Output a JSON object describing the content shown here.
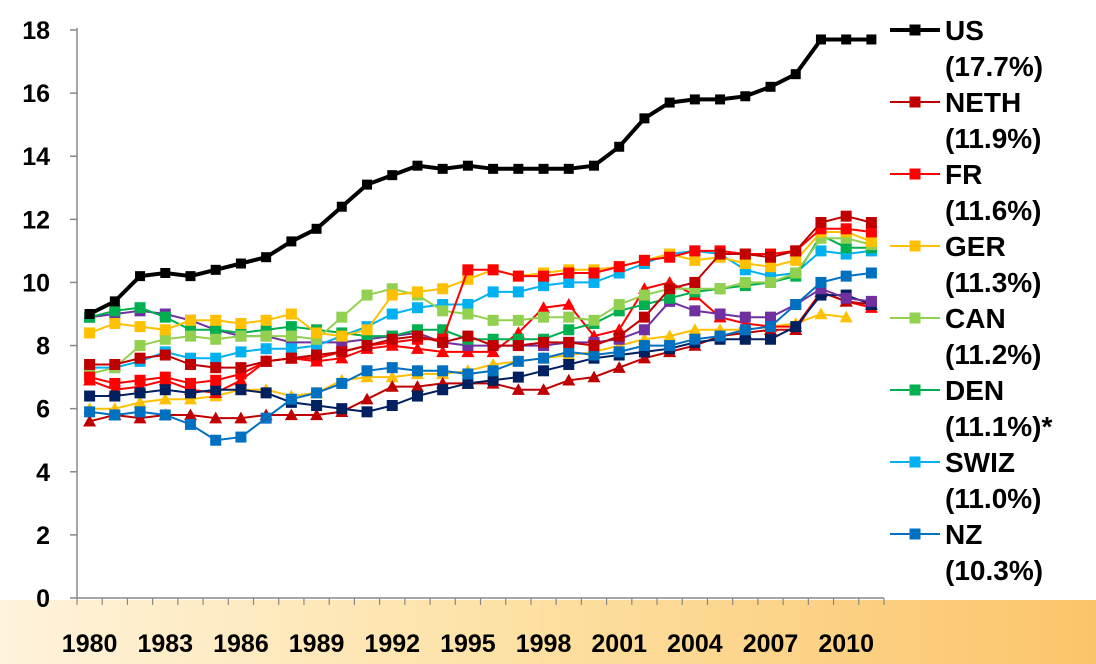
{
  "chart_data": {
    "type": "line",
    "title": "",
    "xlabel": "",
    "ylabel": "",
    "ylim": [
      0,
      18
    ],
    "yticks": [
      0,
      2,
      4,
      6,
      8,
      10,
      12,
      14,
      16,
      18
    ],
    "x": [
      1980,
      1981,
      1982,
      1983,
      1984,
      1985,
      1986,
      1987,
      1988,
      1989,
      1990,
      1991,
      1992,
      1993,
      1994,
      1995,
      1996,
      1997,
      1998,
      1999,
      2000,
      2001,
      2002,
      2003,
      2004,
      2005,
      2006,
      2007,
      2008,
      2009,
      2010,
      2011
    ],
    "xtick_labels": [
      "1980",
      "1983",
      "1986",
      "1989",
      "1992",
      "1995",
      "1998",
      "2001",
      "2004",
      "2007",
      "2010"
    ],
    "legend_position": "right",
    "series": [
      {
        "name": "US",
        "note": "(17.7%)",
        "color": "#000000",
        "marker": "square",
        "values": [
          9.0,
          9.4,
          10.2,
          10.3,
          10.2,
          10.4,
          10.6,
          10.8,
          11.3,
          11.7,
          12.4,
          13.1,
          13.4,
          13.7,
          13.6,
          13.7,
          13.6,
          13.6,
          13.6,
          13.6,
          13.7,
          14.3,
          15.2,
          15.7,
          15.8,
          15.8,
          15.9,
          16.2,
          16.6,
          17.7,
          17.7,
          17.7
        ]
      },
      {
        "name": "NETH",
        "note": "(11.9%)",
        "color": "#c00000",
        "marker": "square",
        "values": [
          7.4,
          7.4,
          7.6,
          7.7,
          7.4,
          7.3,
          7.3,
          7.5,
          7.6,
          7.7,
          7.8,
          8.0,
          8.2,
          8.3,
          8.1,
          8.3,
          8.0,
          8.0,
          8.1,
          8.1,
          8.0,
          8.3,
          8.9,
          9.8,
          10.0,
          10.9,
          10.9,
          10.8,
          11.0,
          11.9,
          12.1,
          11.9
        ]
      },
      {
        "name": "FR",
        "note": "(11.6%)",
        "color": "#ff0000",
        "marker": "square",
        "values": [
          7.0,
          6.8,
          6.9,
          7.0,
          6.8,
          6.9,
          7.1,
          7.5,
          7.6,
          7.6,
          7.8,
          8.0,
          8.1,
          8.2,
          8.2,
          10.4,
          10.4,
          10.2,
          10.2,
          10.3,
          10.3,
          10.5,
          10.7,
          10.8,
          11.0,
          11.0,
          10.9,
          10.9,
          11.0,
          11.7,
          11.7,
          11.6
        ]
      },
      {
        "name": "GER",
        "note": "(11.3%)",
        "color": "#ffc000",
        "marker": "square",
        "values": [
          8.4,
          8.7,
          8.6,
          8.5,
          8.8,
          8.8,
          8.7,
          8.8,
          9.0,
          8.4,
          8.3,
          8.5,
          9.6,
          9.7,
          9.8,
          10.1,
          10.4,
          10.2,
          10.3,
          10.4,
          10.4,
          10.5,
          10.7,
          10.9,
          10.7,
          10.8,
          10.6,
          10.5,
          10.7,
          11.6,
          11.6,
          11.3
        ]
      },
      {
        "name": "CAN",
        "note": "(11.2%)",
        "color": "#92d050",
        "marker": "square",
        "values": [
          7.1,
          7.3,
          8.0,
          8.2,
          8.3,
          8.2,
          8.3,
          8.3,
          8.3,
          8.2,
          8.9,
          9.6,
          9.8,
          9.6,
          9.1,
          9.0,
          8.8,
          8.8,
          8.9,
          8.9,
          8.8,
          9.3,
          9.6,
          9.8,
          9.8,
          9.8,
          10.0,
          10.0,
          10.3,
          11.4,
          11.4,
          11.2
        ]
      },
      {
        "name": "DEN",
        "note": "(11.1%)*",
        "color": "#00b050",
        "marker": "square",
        "values": [
          8.9,
          9.1,
          9.2,
          8.9,
          8.5,
          8.5,
          8.4,
          8.5,
          8.6,
          8.5,
          8.4,
          8.3,
          8.3,
          8.5,
          8.5,
          8.2,
          8.2,
          8.2,
          8.2,
          8.5,
          8.7,
          9.1,
          9.3,
          9.5,
          9.7,
          9.8,
          9.9,
          10.0,
          10.2,
          11.5,
          11.1,
          11.1
        ]
      },
      {
        "name": "SWIZ",
        "note": "(11.0%)",
        "color": "#00b0f0",
        "marker": "square",
        "values": [
          7.3,
          7.3,
          7.5,
          7.8,
          7.6,
          7.6,
          7.8,
          7.9,
          7.9,
          8.0,
          8.3,
          8.6,
          9.0,
          9.2,
          9.3,
          9.3,
          9.7,
          9.7,
          9.9,
          10.0,
          10.0,
          10.3,
          10.6,
          10.9,
          11.0,
          10.9,
          10.4,
          10.2,
          10.3,
          11.0,
          10.9,
          11.0
        ]
      },
      {
        "name": "NZ",
        "note": "(10.3%)",
        "color": "#0070c0",
        "marker": "square",
        "values": [
          5.9,
          5.8,
          5.9,
          5.8,
          5.5,
          5.0,
          5.1,
          5.7,
          6.3,
          6.5,
          6.8,
          7.2,
          7.3,
          7.2,
          7.2,
          7.1,
          7.2,
          7.5,
          7.6,
          7.8,
          7.7,
          7.8,
          8.0,
          8.0,
          8.2,
          8.3,
          8.5,
          8.6,
          9.3,
          10.0,
          10.2,
          10.3
        ]
      },
      {
        "name": "",
        "note": "",
        "color": "#7030a0",
        "marker": "square",
        "values": [
          8.9,
          9.0,
          9.1,
          9.0,
          8.8,
          8.5,
          8.3,
          8.3,
          8.1,
          8.1,
          8.1,
          8.2,
          8.3,
          8.4,
          8.1,
          8.0,
          8.0,
          8.0,
          8.0,
          8.1,
          8.1,
          8.2,
          8.5,
          9.4,
          9.1,
          9.0,
          8.9,
          8.9,
          9.3,
          9.8,
          9.5,
          9.4
        ]
      },
      {
        "name": "",
        "note": "",
        "color": "#002060",
        "marker": "square",
        "values": [
          6.4,
          6.4,
          6.5,
          6.6,
          6.5,
          6.6,
          6.6,
          6.5,
          6.2,
          6.1,
          6.0,
          5.9,
          6.1,
          6.4,
          6.6,
          6.8,
          6.9,
          7.0,
          7.2,
          7.4,
          7.6,
          7.7,
          7.8,
          7.9,
          8.1,
          8.2,
          8.2,
          8.2,
          8.6,
          9.6,
          9.6,
          9.3
        ]
      },
      {
        "name": "",
        "note": "",
        "color": "#c00000",
        "marker": "triangle",
        "values": [
          5.6,
          5.8,
          5.7,
          5.8,
          5.8,
          5.7,
          5.7,
          5.8,
          5.8,
          5.8,
          5.9,
          6.3,
          6.7,
          6.7,
          6.8,
          6.8,
          6.8,
          6.6,
          6.6,
          6.9,
          7.0,
          7.3,
          7.6,
          7.8,
          8.0,
          8.3,
          8.4,
          8.5,
          8.5,
          9.7,
          9.4,
          9.3
        ]
      },
      {
        "name": "",
        "note": "",
        "color": "#ff0000",
        "marker": "triangle",
        "values": [
          6.9,
          6.6,
          6.7,
          6.9,
          6.6,
          6.5,
          6.9,
          7.5,
          7.6,
          7.5,
          7.6,
          7.9,
          8.0,
          7.9,
          7.8,
          7.8,
          7.8,
          8.4,
          9.2,
          9.3,
          8.3,
          8.5,
          9.8,
          10.0,
          9.6,
          8.9,
          8.7,
          8.6,
          8.6,
          9.7,
          9.4,
          9.2
        ]
      },
      {
        "name": "",
        "note": "",
        "color": "#ffc000",
        "marker": "triangle",
        "values": [
          6.0,
          6.0,
          6.2,
          6.3,
          6.3,
          6.4,
          6.6,
          6.6,
          6.4,
          6.5,
          6.9,
          7.0,
          7.0,
          7.1,
          7.1,
          7.2,
          7.4,
          7.5,
          7.6,
          7.7,
          7.8,
          8.0,
          8.2,
          8.3,
          8.5,
          8.5,
          8.5,
          8.6,
          8.7,
          9.0,
          8.9,
          null
        ]
      }
    ]
  }
}
